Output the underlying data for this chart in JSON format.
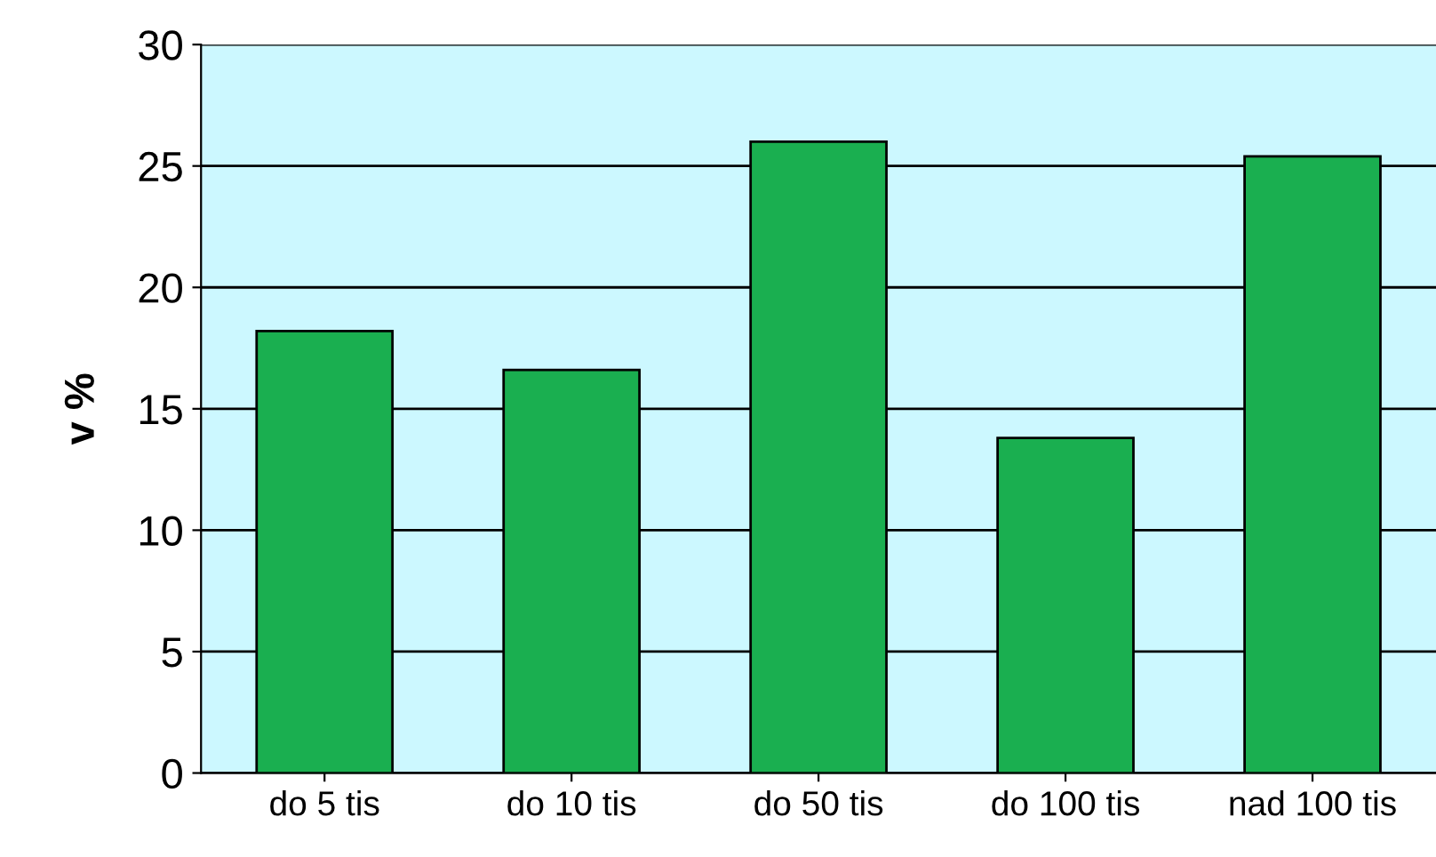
{
  "chart_data": {
    "type": "bar",
    "ylabel": "v %",
    "categories": [
      "do 5 tis",
      "do 10 tis",
      "do 50 tis",
      "do 100 tis",
      "nad 100 tis"
    ],
    "values": [
      18.2,
      16.6,
      26.0,
      13.8,
      25.4
    ],
    "color": "#1aaf50",
    "ylim": [
      0,
      30
    ],
    "yticks": [
      0,
      5,
      10,
      15,
      20,
      25,
      30
    ],
    "grid": "y",
    "legend": false
  }
}
